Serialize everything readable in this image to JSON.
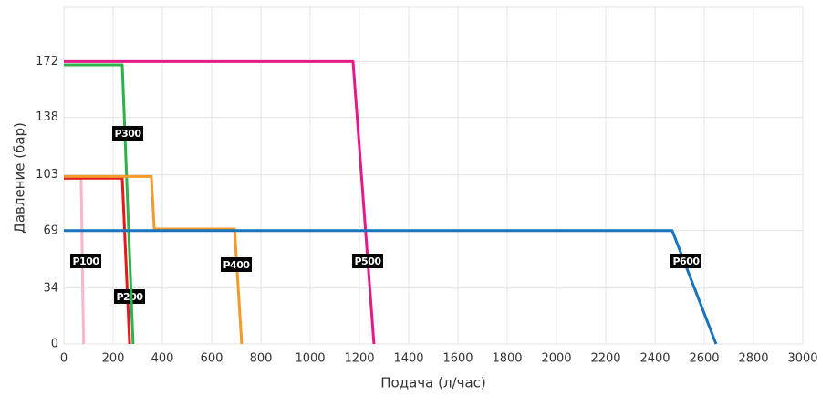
{
  "chart_data": {
    "type": "line",
    "x_label": "Подача (л/час)",
    "y_label": "Давление (бар)",
    "xlim": [
      0,
      3000
    ],
    "xticks": [
      0,
      200,
      400,
      600,
      800,
      1000,
      1200,
      1400,
      1600,
      1800,
      2000,
      2200,
      2400,
      2600,
      2800,
      3000
    ],
    "ylim": [
      0,
      205
    ],
    "yticks": [
      0,
      34,
      69,
      103,
      138,
      172
    ],
    "grid": true,
    "series": [
      {
        "name": "P100",
        "color": "#f4b8c8",
        "x": [
          0,
          70,
          80
        ],
        "values": [
          101,
          101,
          0
        ]
      },
      {
        "name": "P200",
        "color": "#e3191c",
        "x": [
          0,
          237,
          267
        ],
        "values": [
          101,
          101,
          0
        ]
      },
      {
        "name": "P300",
        "color": "#2eb04b",
        "x": [
          0,
          237,
          281
        ],
        "values": [
          170,
          170,
          0
        ]
      },
      {
        "name": "P400",
        "color": "#f39a2a",
        "x": [
          0,
          355,
          367,
          693,
          722
        ],
        "values": [
          102,
          102,
          70,
          70,
          0
        ]
      },
      {
        "name": "P500",
        "color": "#e5198a",
        "x": [
          0,
          1174,
          1259
        ],
        "values": [
          172,
          172,
          0
        ]
      },
      {
        "name": "P600",
        "color": "#1a74bb",
        "x": [
          0,
          2470,
          2648
        ],
        "values": [
          69,
          69,
          0
        ]
      }
    ]
  }
}
